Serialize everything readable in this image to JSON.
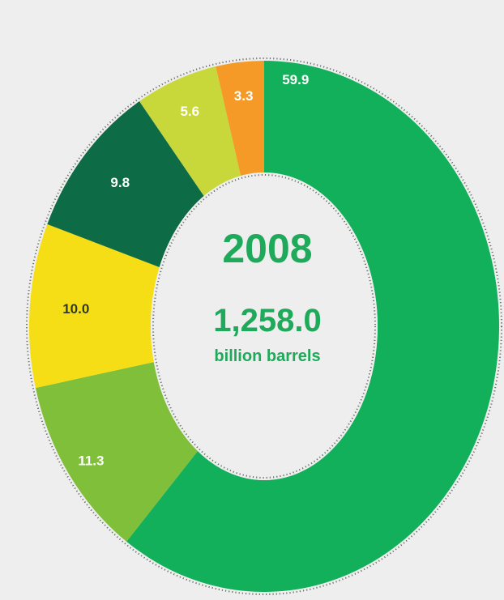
{
  "chart_data": {
    "type": "pie",
    "categories": [
      "",
      "",
      "",
      "",
      "",
      ""
    ],
    "values": [
      59.9,
      11.3,
      10.0,
      9.8,
      5.6,
      3.3
    ],
    "labels": [
      "59.9",
      "11.3",
      "10.0",
      "9.8",
      "5.6",
      "3.3"
    ],
    "colors": [
      "#12b05a",
      "#7fbf3a",
      "#f6de16",
      "#0d6b45",
      "#c8d83a",
      "#f59a26"
    ],
    "label_dark": [
      false,
      false,
      true,
      false,
      false,
      false
    ],
    "style": "donut"
  },
  "center": {
    "year": "2008",
    "total": "1,258.0",
    "unit": "billion barrels"
  }
}
